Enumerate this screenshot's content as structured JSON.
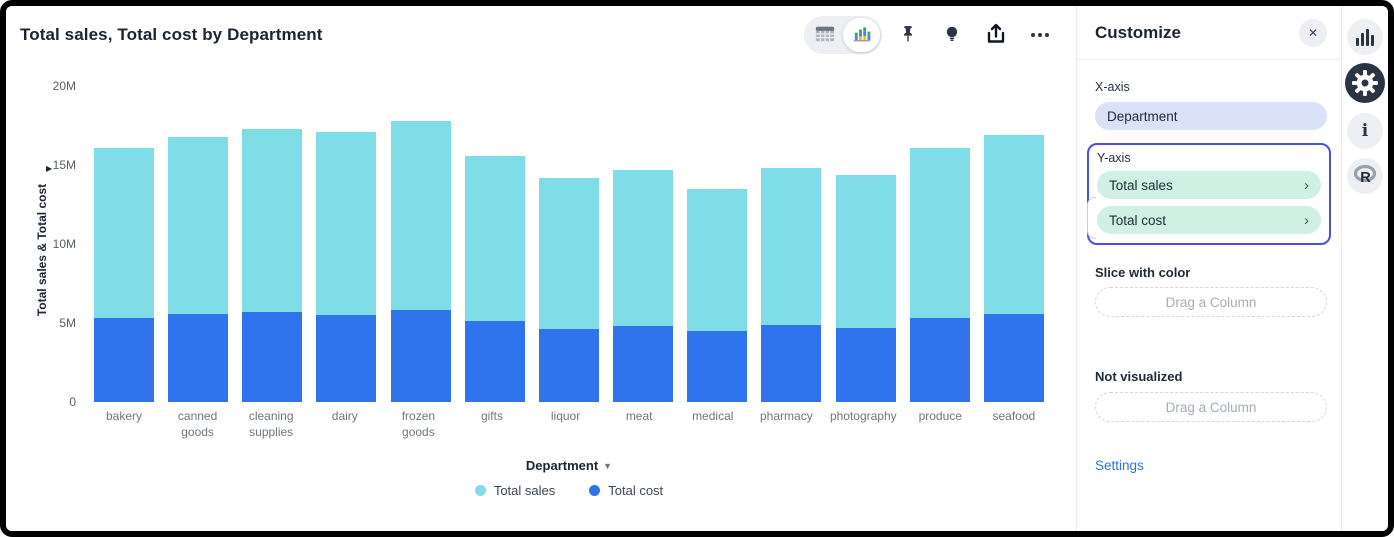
{
  "chart": {
    "title": "Total sales, Total cost by Department",
    "y_axis_title": "Total sales & Total cost",
    "y_ticks": [
      "20M",
      "15M",
      "10M",
      "5M",
      "0"
    ],
    "x_axis_label": "Department",
    "legend": [
      {
        "label": "Total sales",
        "color": "#7FDDE8"
      },
      {
        "label": "Total cost",
        "color": "#2F74EC"
      }
    ],
    "toolbar": {
      "icons": [
        "table-view-icon",
        "chart-view-icon",
        "pin-icon",
        "lightbulb-icon",
        "export-icon",
        "more-icon"
      ]
    }
  },
  "chart_data": {
    "type": "bar",
    "stacked": true,
    "title": "Total sales, Total cost by Department",
    "xlabel": "Department",
    "ylabel": "Total sales & Total cost",
    "ylim": [
      0,
      20
    ],
    "value_unit": "M",
    "grid": false,
    "legend_position": "bottom",
    "categories": [
      "bakery",
      "canned goods",
      "cleaning supplies",
      "dairy",
      "frozen goods",
      "gifts",
      "liquor",
      "meat",
      "medical",
      "pharmacy",
      "photography",
      "produce",
      "seafood"
    ],
    "series": [
      {
        "name": "Total sales",
        "color": "#7FDDE8",
        "values": [
          10.8,
          11.25,
          11.6,
          11.6,
          12.0,
          10.5,
          9.6,
          9.9,
          9.0,
          9.9,
          9.7,
          10.8,
          11.35
        ]
      },
      {
        "name": "Total cost",
        "color": "#2F74EC",
        "values": [
          5.3,
          5.55,
          5.7,
          5.5,
          5.8,
          5.1,
          4.6,
          4.8,
          4.5,
          4.9,
          4.7,
          5.3,
          5.55
        ]
      }
    ],
    "totals": [
      16.1,
      16.8,
      17.3,
      17.1,
      17.8,
      15.6,
      14.2,
      14.7,
      13.5,
      14.8,
      14.4,
      16.1,
      16.9
    ]
  },
  "panel": {
    "title": "Customize",
    "close_icon": "✕",
    "x_axis": {
      "label": "X-axis",
      "value": "Department"
    },
    "y_axis": {
      "label": "Y-axis",
      "items": [
        "Total sales",
        "Total cost"
      ],
      "chevron": "›",
      "highlight_border": "#4A4FE8"
    },
    "slice": {
      "label": "Slice with color",
      "placeholder": "Drag a Column"
    },
    "not_visualized": {
      "label": "Not visualized",
      "placeholder": "Drag a Column"
    },
    "settings_label": "Settings"
  },
  "side_icons": [
    "bar-chart-icon",
    "gear-icon",
    "info-icon",
    "r-language-icon"
  ],
  "colors": {
    "sales_bar": "#7FDDE8",
    "cost_bar": "#2F74EC",
    "pill_lavender": "#D9E2F8",
    "pill_mint": "#CFF0E2",
    "dropzone_border": "#4A4FE8",
    "link_blue": "#2F6FED",
    "icon_dark": "#2A3544"
  }
}
